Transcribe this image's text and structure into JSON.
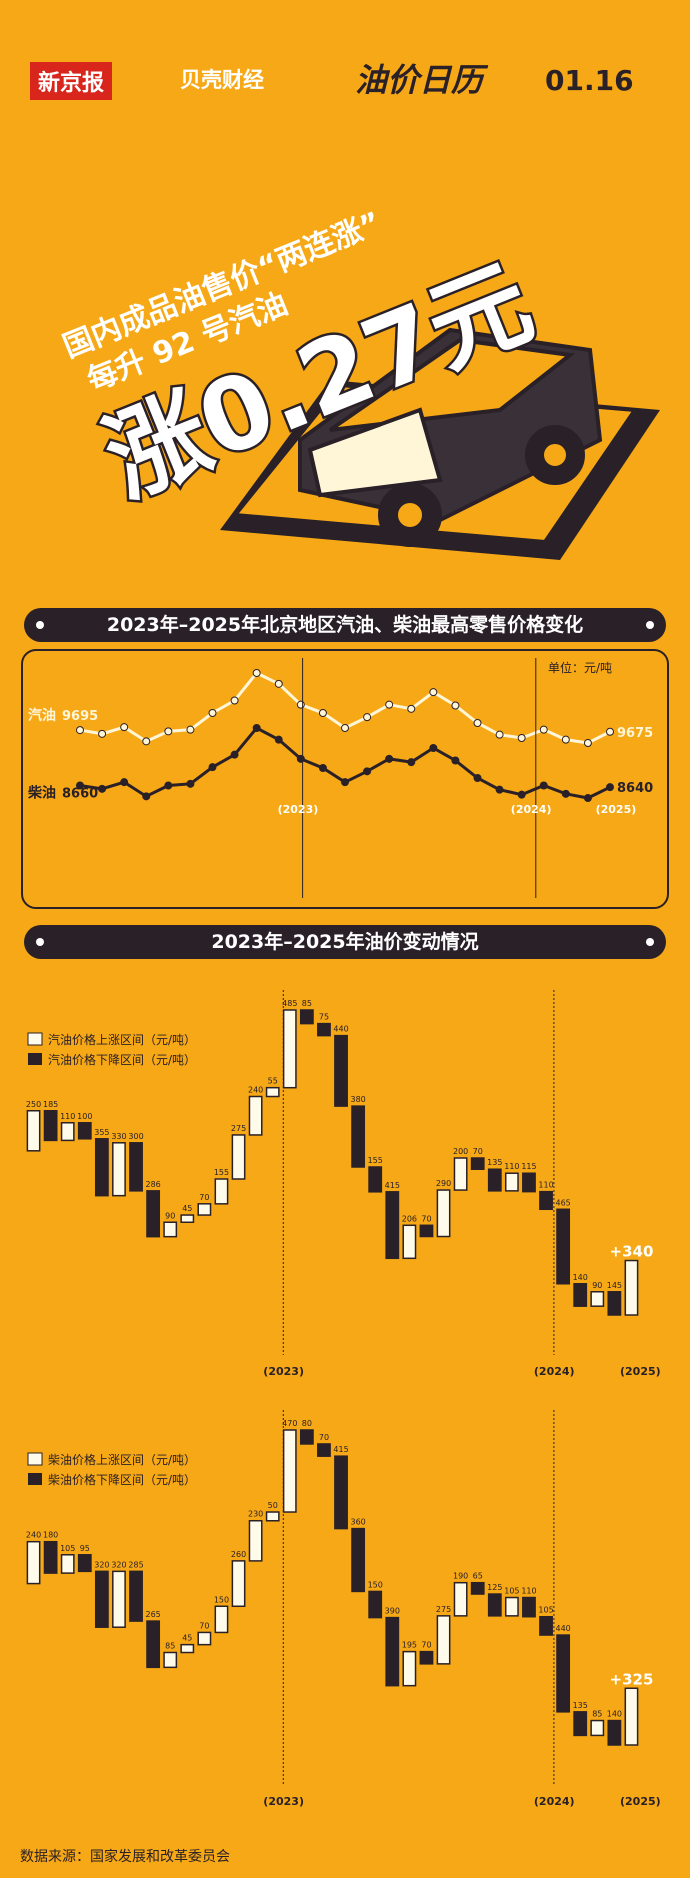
{
  "header": {
    "paper": "新京报",
    "brand": "贝壳财经",
    "column": "油价日历",
    "date": "01.16"
  },
  "headline": {
    "line1": "国内成品油售价“两连涨”",
    "line2": "每升 92 号汽油",
    "main": "涨0.27元"
  },
  "footer": {
    "source": "数据来源：国家发展和改革委员会"
  },
  "chart_data": [
    {
      "type": "line",
      "title": "2023年–2025年北京地区汽油、柴油最高零售价格变化",
      "unit": "单位：元/吨",
      "years": [
        "(2023)",
        "(2024)",
        "(2025)"
      ],
      "series": [
        {
          "name": "汽油",
          "color": "#fff6d8",
          "start_label": "9695",
          "end_label": "9675",
          "values": [
            9695,
            9650,
            9730,
            9560,
            9680,
            9700,
            9900,
            10050,
            10380,
            10250,
            10000,
            9900,
            9720,
            9850,
            10000,
            9950,
            10150,
            9990,
            9780,
            9640,
            9600,
            9700,
            9580,
            9540,
            9675
          ]
        },
        {
          "name": "柴油",
          "color": "#2a2028",
          "start_label": "8660",
          "end_label": "8640",
          "values": [
            8660,
            8620,
            8700,
            8530,
            8660,
            8680,
            8880,
            9030,
            9350,
            9210,
            8980,
            8870,
            8700,
            8830,
            8980,
            8940,
            9110,
            8960,
            8750,
            8610,
            8550,
            8660,
            8560,
            8510,
            8640
          ]
        }
      ]
    },
    {
      "type": "waterfall",
      "title": "2023年–2025年油价变动情况",
      "up_label": "汽油价格上涨区间（元/吨）",
      "down_label": "汽油价格下降区间（元/吨）",
      "up_color": "#fffbea",
      "down_color": "#2a2028",
      "years": [
        "(2023)",
        "(2024)",
        "(2025)"
      ],
      "values": [
        250,
        -185,
        110,
        -100,
        -355,
        330,
        -300,
        -286,
        90,
        45,
        70,
        155,
        275,
        240,
        55,
        485,
        -85,
        -75,
        -440,
        -380,
        -155,
        -415,
        206,
        -70,
        290,
        200,
        -70,
        -135,
        110,
        -115,
        -110,
        -465,
        -140,
        90,
        -145,
        340
      ],
      "value_labels": [
        "250",
        "185",
        "110",
        "100",
        "355",
        "330",
        "300",
        "286",
        "90",
        "45",
        "70",
        "155",
        "275",
        "240",
        "55",
        "485",
        "85",
        "75",
        "440",
        "380",
        "155",
        "415",
        "206",
        "70",
        "290",
        "200",
        "70",
        "135",
        "110",
        "115",
        "110",
        "465",
        "140",
        "90",
        "145",
        "+340"
      ]
    },
    {
      "type": "waterfall",
      "up_label": "柴油价格上涨区间（元/吨）",
      "down_label": "柴油价格下降区间（元/吨）",
      "up_color": "#fffbea",
      "down_color": "#2a2028",
      "years": [
        "(2023)",
        "(2024)",
        "(2025)"
      ],
      "values": [
        240,
        -180,
        105,
        -95,
        -320,
        320,
        -285,
        -265,
        85,
        45,
        70,
        150,
        260,
        230,
        50,
        470,
        -80,
        -70,
        -415,
        -360,
        -150,
        -390,
        195,
        -70,
        275,
        190,
        -65,
        -125,
        105,
        -110,
        -105,
        -440,
        -135,
        85,
        -140,
        325
      ],
      "value_labels": [
        "240",
        "180",
        "105",
        "95",
        "320",
        "320",
        "285",
        "265",
        "85",
        "45",
        "70",
        "150",
        "260",
        "230",
        "50",
        "470",
        "80",
        "70",
        "415",
        "360",
        "150",
        "390",
        "195",
        "70",
        "275",
        "190",
        "65",
        "125",
        "105",
        "110",
        "105",
        "440",
        "135",
        "85",
        "140",
        "+325"
      ]
    }
  ]
}
